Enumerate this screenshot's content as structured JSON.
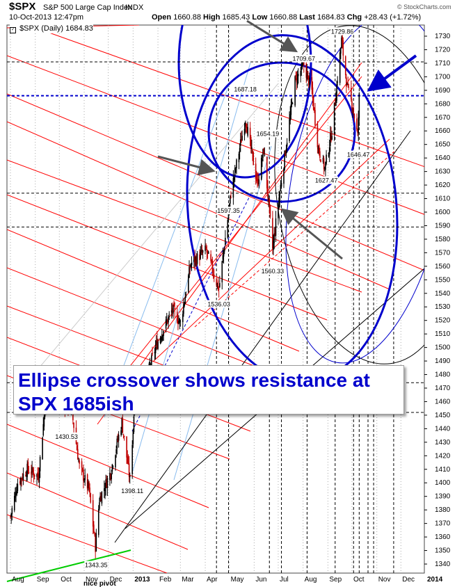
{
  "header": {
    "symbol": "$SPX",
    "description": "S&P 500 Large Cap Index",
    "exchange": "INDX",
    "watermark": "© StockCharts.com",
    "datetime": "10-Oct-2013 12:47pm",
    "open_label": "Open",
    "open_value": "1660.88",
    "high_label": "High",
    "high_value": "1685.43",
    "low_label": "Low",
    "low_value": "1660.88",
    "last_label": "Last",
    "last_value": "1684.83",
    "chg_label": "Chg",
    "chg_value": "+28.43 (+1.72%)",
    "legend_symbol": "$SPX (Daily)",
    "legend_value": "1684.83",
    "legend_checkbox_icon": "checkbox-icon"
  },
  "callout": {
    "line1": "Ellipse crossover shows resistance at",
    "line2": "SPX 1685ish"
  },
  "chart_data": {
    "type": "candlestick",
    "title": "$SPX S&P 500 Large Cap Index INDX",
    "x_tick_labels": [
      "Aug",
      "Sep",
      "Oct",
      "Nov",
      "Dec",
      "2013",
      "Feb",
      "Mar",
      "Apr",
      "May",
      "Jun",
      "Jul",
      "Aug",
      "Sep",
      "Oct",
      "Nov",
      "Dec",
      "2014"
    ],
    "y_tick_labels": [
      1340,
      1350,
      1360,
      1370,
      1380,
      1390,
      1400,
      1410,
      1420,
      1430,
      1440,
      1450,
      1460,
      1470,
      1480,
      1490,
      1500,
      1510,
      1520,
      1530,
      1540,
      1550,
      1560,
      1570,
      1580,
      1590,
      1600,
      1610,
      1620,
      1630,
      1640,
      1650,
      1660,
      1670,
      1680,
      1690,
      1700,
      1710,
      1720,
      1730
    ],
    "ylim": [
      1335,
      1738
    ],
    "price_path": [
      [
        "2012-08-01",
        1375
      ],
      [
        "2012-08-10",
        1400
      ],
      [
        "2012-08-22",
        1410
      ],
      [
        "2012-09-05",
        1405
      ],
      [
        "2012-09-14",
        1462
      ],
      [
        "2012-09-21",
        1465
      ],
      [
        "2012-10-05",
        1460
      ],
      [
        "2012-10-16",
        1455
      ],
      [
        "2012-10-26",
        1412
      ],
      [
        "2012-11-07",
        1395
      ],
      [
        "2012-11-15",
        1353
      ],
      [
        "2012-11-20",
        1388
      ],
      [
        "2012-12-04",
        1408
      ],
      [
        "2012-12-18",
        1445
      ],
      [
        "2012-12-28",
        1402
      ],
      [
        "2013-01-03",
        1460
      ],
      [
        "2013-01-15",
        1472
      ],
      [
        "2013-01-30",
        1502
      ],
      [
        "2013-02-19",
        1528
      ],
      [
        "2013-03-01",
        1518
      ],
      [
        "2013-03-14",
        1562
      ],
      [
        "2013-04-02",
        1572
      ],
      [
        "2013-04-18",
        1543
      ],
      [
        "2013-05-03",
        1614
      ],
      [
        "2013-05-21",
        1669
      ],
      [
        "2013-06-05",
        1621
      ],
      [
        "2013-06-13",
        1646
      ],
      [
        "2013-06-24",
        1573
      ],
      [
        "2013-07-03",
        1615
      ],
      [
        "2013-07-22",
        1697
      ],
      [
        "2013-08-02",
        1709
      ],
      [
        "2013-08-12",
        1689
      ],
      [
        "2013-08-20",
        1647
      ],
      [
        "2013-08-28",
        1632
      ],
      [
        "2013-09-06",
        1660
      ],
      [
        "2013-09-18",
        1727
      ],
      [
        "2013-09-25",
        1692
      ],
      [
        "2013-10-02",
        1678
      ],
      [
        "2013-10-08",
        1656
      ],
      [
        "2013-10-10",
        1685
      ]
    ],
    "data_labels": [
      {
        "text": "1430.53",
        "date": "2012-10-10",
        "value": 1430.53
      },
      {
        "text": "1343.35",
        "date": "2012-11-16",
        "value": 1343.35
      },
      {
        "text": "1398.11",
        "date": "2012-12-31",
        "value": 1398.11
      },
      {
        "text": "1536.03",
        "date": "2013-04-18",
        "value": 1536.03
      },
      {
        "text": "1597.35",
        "date": "2013-04-30",
        "value": 1597.35
      },
      {
        "text": "1687.18",
        "date": "2013-05-21",
        "value": 1687.18
      },
      {
        "text": "1654.19",
        "date": "2013-06-18",
        "value": 1654.19
      },
      {
        "text": "1560.33",
        "date": "2013-06-24",
        "value": 1560.33
      },
      {
        "text": "1709.67",
        "date": "2013-08-02",
        "value": 1709.67
      },
      {
        "text": "1627.47",
        "date": "2013-08-30",
        "value": 1627.47
      },
      {
        "text": "1729.86",
        "date": "2013-09-19",
        "value": 1729.86
      },
      {
        "text": "1646.47",
        "date": "2013-10-09",
        "value": 1646.47
      }
    ],
    "annotations": [
      "nice pivot"
    ],
    "horizontal_lines": [
      {
        "value": 1686,
        "style": "dashed",
        "color": "#0000cc"
      },
      {
        "value": 1711,
        "style": "dashed",
        "color": "#000000"
      },
      {
        "value": 1614,
        "style": "dashed",
        "color": "#000000"
      },
      {
        "value": 1589,
        "style": "dashed",
        "color": "#000000"
      },
      {
        "value": 1474,
        "style": "dashed",
        "color": "#000000"
      },
      {
        "value": 1452,
        "style": "dashed",
        "color": "#000000"
      }
    ],
    "grid": "dotted vertical",
    "colors": {
      "up": "#000000",
      "down": "#c00000",
      "ellipse": "#0000cc",
      "channel": "#ff0000",
      "arrow": "#555555"
    }
  }
}
